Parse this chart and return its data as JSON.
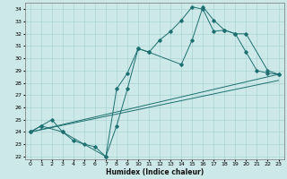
{
  "title": "",
  "xlabel": "Humidex (Indice chaleur)",
  "bg_color": "#cce8e8",
  "line_color": "#1e7070",
  "grid_color": "#aad4d4",
  "xlim": [
    -0.5,
    23.5
  ],
  "ylim": [
    21.8,
    34.5
  ],
  "xtick_labels": [
    "0",
    "1",
    "2",
    "3",
    "4",
    "5",
    "6",
    "7",
    "8",
    "9",
    "10",
    "11",
    "12",
    "13",
    "14",
    "15",
    "16",
    "17",
    "18",
    "19",
    "20",
    "21",
    "22",
    "23"
  ],
  "xticks": [
    0,
    1,
    2,
    3,
    4,
    5,
    6,
    7,
    8,
    9,
    10,
    11,
    12,
    13,
    14,
    15,
    16,
    17,
    18,
    19,
    20,
    21,
    22,
    23
  ],
  "yticks": [
    22,
    23,
    24,
    25,
    26,
    27,
    28,
    29,
    30,
    31,
    32,
    33,
    34
  ],
  "series1_x": [
    0,
    1,
    2,
    3,
    4,
    5,
    6,
    7,
    8,
    9,
    10,
    11,
    12,
    13,
    14,
    15,
    16,
    17,
    18,
    19,
    20,
    21,
    22,
    23
  ],
  "series1_y": [
    24,
    24.5,
    25,
    24,
    23.3,
    23,
    22.8,
    22,
    24.5,
    27.5,
    30.8,
    30.5,
    31.5,
    32.2,
    33.1,
    34.2,
    34,
    32.2,
    32.3,
    32,
    30.5,
    29,
    28.8,
    28.7
  ],
  "series2_x": [
    0,
    1,
    3,
    7,
    8,
    9,
    10,
    11,
    14,
    15,
    16,
    17,
    18,
    19,
    20,
    22,
    23
  ],
  "series2_y": [
    24,
    24.5,
    24,
    22,
    27.5,
    28.8,
    30.8,
    30.5,
    29.5,
    31.5,
    34.2,
    33.1,
    32.3,
    32,
    32,
    29,
    28.7
  ],
  "series3_x": [
    0,
    23
  ],
  "series3_y": [
    24,
    28.7
  ],
  "series4_x": [
    0,
    23
  ],
  "series4_y": [
    24,
    28.2
  ]
}
